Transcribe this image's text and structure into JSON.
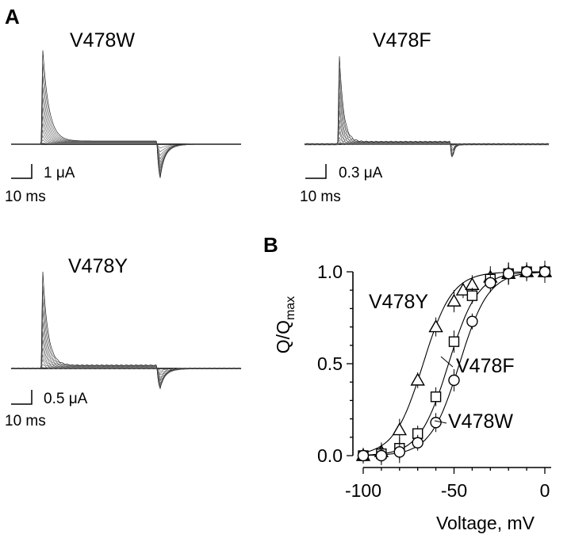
{
  "panel_a": {
    "letter": "A",
    "recordings": [
      {
        "name": "V478W",
        "scale_current": "1 μA",
        "scale_time": "10 ms"
      },
      {
        "name": "V478F",
        "scale_current": "0.3 μA",
        "scale_time": "10 ms"
      },
      {
        "name": "V478Y",
        "scale_current": "0.5 μA",
        "scale_time": "10 ms"
      }
    ]
  },
  "chart_data": {
    "type": "scatter",
    "panel_letter": "B",
    "xlabel": "Voltage,  mV",
    "ylabel_main": "Q/Q",
    "ylabel_sub": "max",
    "xlim": [
      -100,
      0
    ],
    "ylim": [
      0,
      1
    ],
    "x_ticks": [
      "-100",
      "-50",
      "0"
    ],
    "y_ticks": [
      "0.0",
      "0.5",
      "1.0"
    ],
    "grid": false,
    "series": [
      {
        "name": "V478Y",
        "marker": "triangle",
        "x": [
          -100,
          -90,
          -80,
          -70,
          -60,
          -50,
          -45,
          -40,
          -30,
          -20,
          -10,
          0
        ],
        "y": [
          0.0,
          0.02,
          0.14,
          0.41,
          0.7,
          0.84,
          0.9,
          0.93,
          0.97,
          0.99,
          1.0,
          1.0
        ],
        "fit": {
          "v_half": -67,
          "slope": 8
        }
      },
      {
        "name": "V478F",
        "marker": "square",
        "x": [
          -100,
          -90,
          -80,
          -70,
          -60,
          -50,
          -40,
          -30,
          -20,
          -10,
          0
        ],
        "y": [
          0.0,
          0.01,
          0.04,
          0.12,
          0.32,
          0.62,
          0.87,
          0.96,
          0.99,
          1.0,
          1.0
        ],
        "fit": {
          "v_half": -53,
          "slope": 8
        }
      },
      {
        "name": "V478W",
        "marker": "circle",
        "x": [
          -100,
          -90,
          -80,
          -70,
          -60,
          -50,
          -40,
          -30,
          -20,
          -10,
          0
        ],
        "y": [
          0.0,
          0.0,
          0.02,
          0.07,
          0.18,
          0.41,
          0.73,
          0.94,
          0.99,
          1.0,
          1.0
        ],
        "fit": {
          "v_half": -47,
          "slope": 8
        }
      }
    ]
  }
}
